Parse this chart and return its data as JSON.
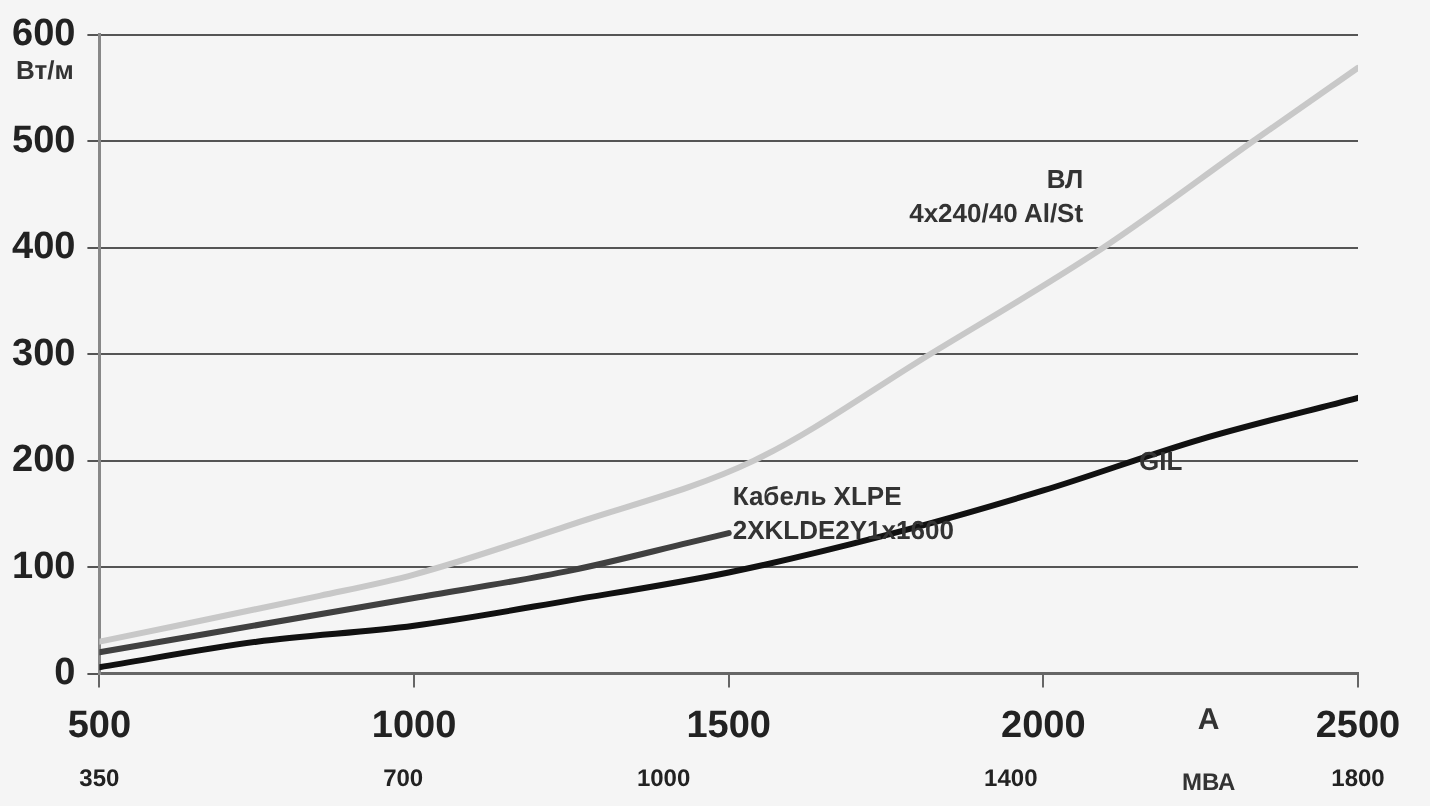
{
  "chart_data": {
    "type": "line",
    "ylabel": "Вт/м",
    "xlabel": "А",
    "x2label": "МВА",
    "xlim": [
      500,
      2500
    ],
    "xticks": [
      500,
      1000,
      1500,
      2000,
      2500
    ],
    "x2lim": [
      350,
      1800
    ],
    "x2ticks": [
      350,
      700,
      1000,
      1400,
      1800
    ],
    "ylim": [
      0,
      600
    ],
    "yticks": [
      0,
      100,
      200,
      300,
      400,
      500,
      600
    ],
    "grid": "y",
    "legend": false,
    "marker": "none",
    "line_style": "solid",
    "series": [
      {
        "name": "ВЛ\n4x240/40 Al/St",
        "color": "#c8c8c8",
        "x": [
          500,
          850,
          1000,
          1250,
          1540,
          1820,
          2095,
          2333,
          2500
        ],
        "values": [
          30,
          73,
          93,
          140,
          200,
          300,
          400,
          500,
          569
        ]
      },
      {
        "name": "Кабель XLPE\n2XKLDE2Y1x1600",
        "color": "#404040",
        "x": [
          500,
          1000,
          1250,
          1437,
          1500
        ],
        "values": [
          20,
          71,
          97,
          123,
          132
        ]
      },
      {
        "name": "GIL",
        "color": "#111111",
        "x": [
          500,
          750,
          1000,
          1250,
          1500,
          1750,
          2000,
          2250,
          2500
        ],
        "values": [
          6,
          30,
          45,
          69,
          95,
          130,
          172,
          220,
          259
        ]
      }
    ]
  }
}
